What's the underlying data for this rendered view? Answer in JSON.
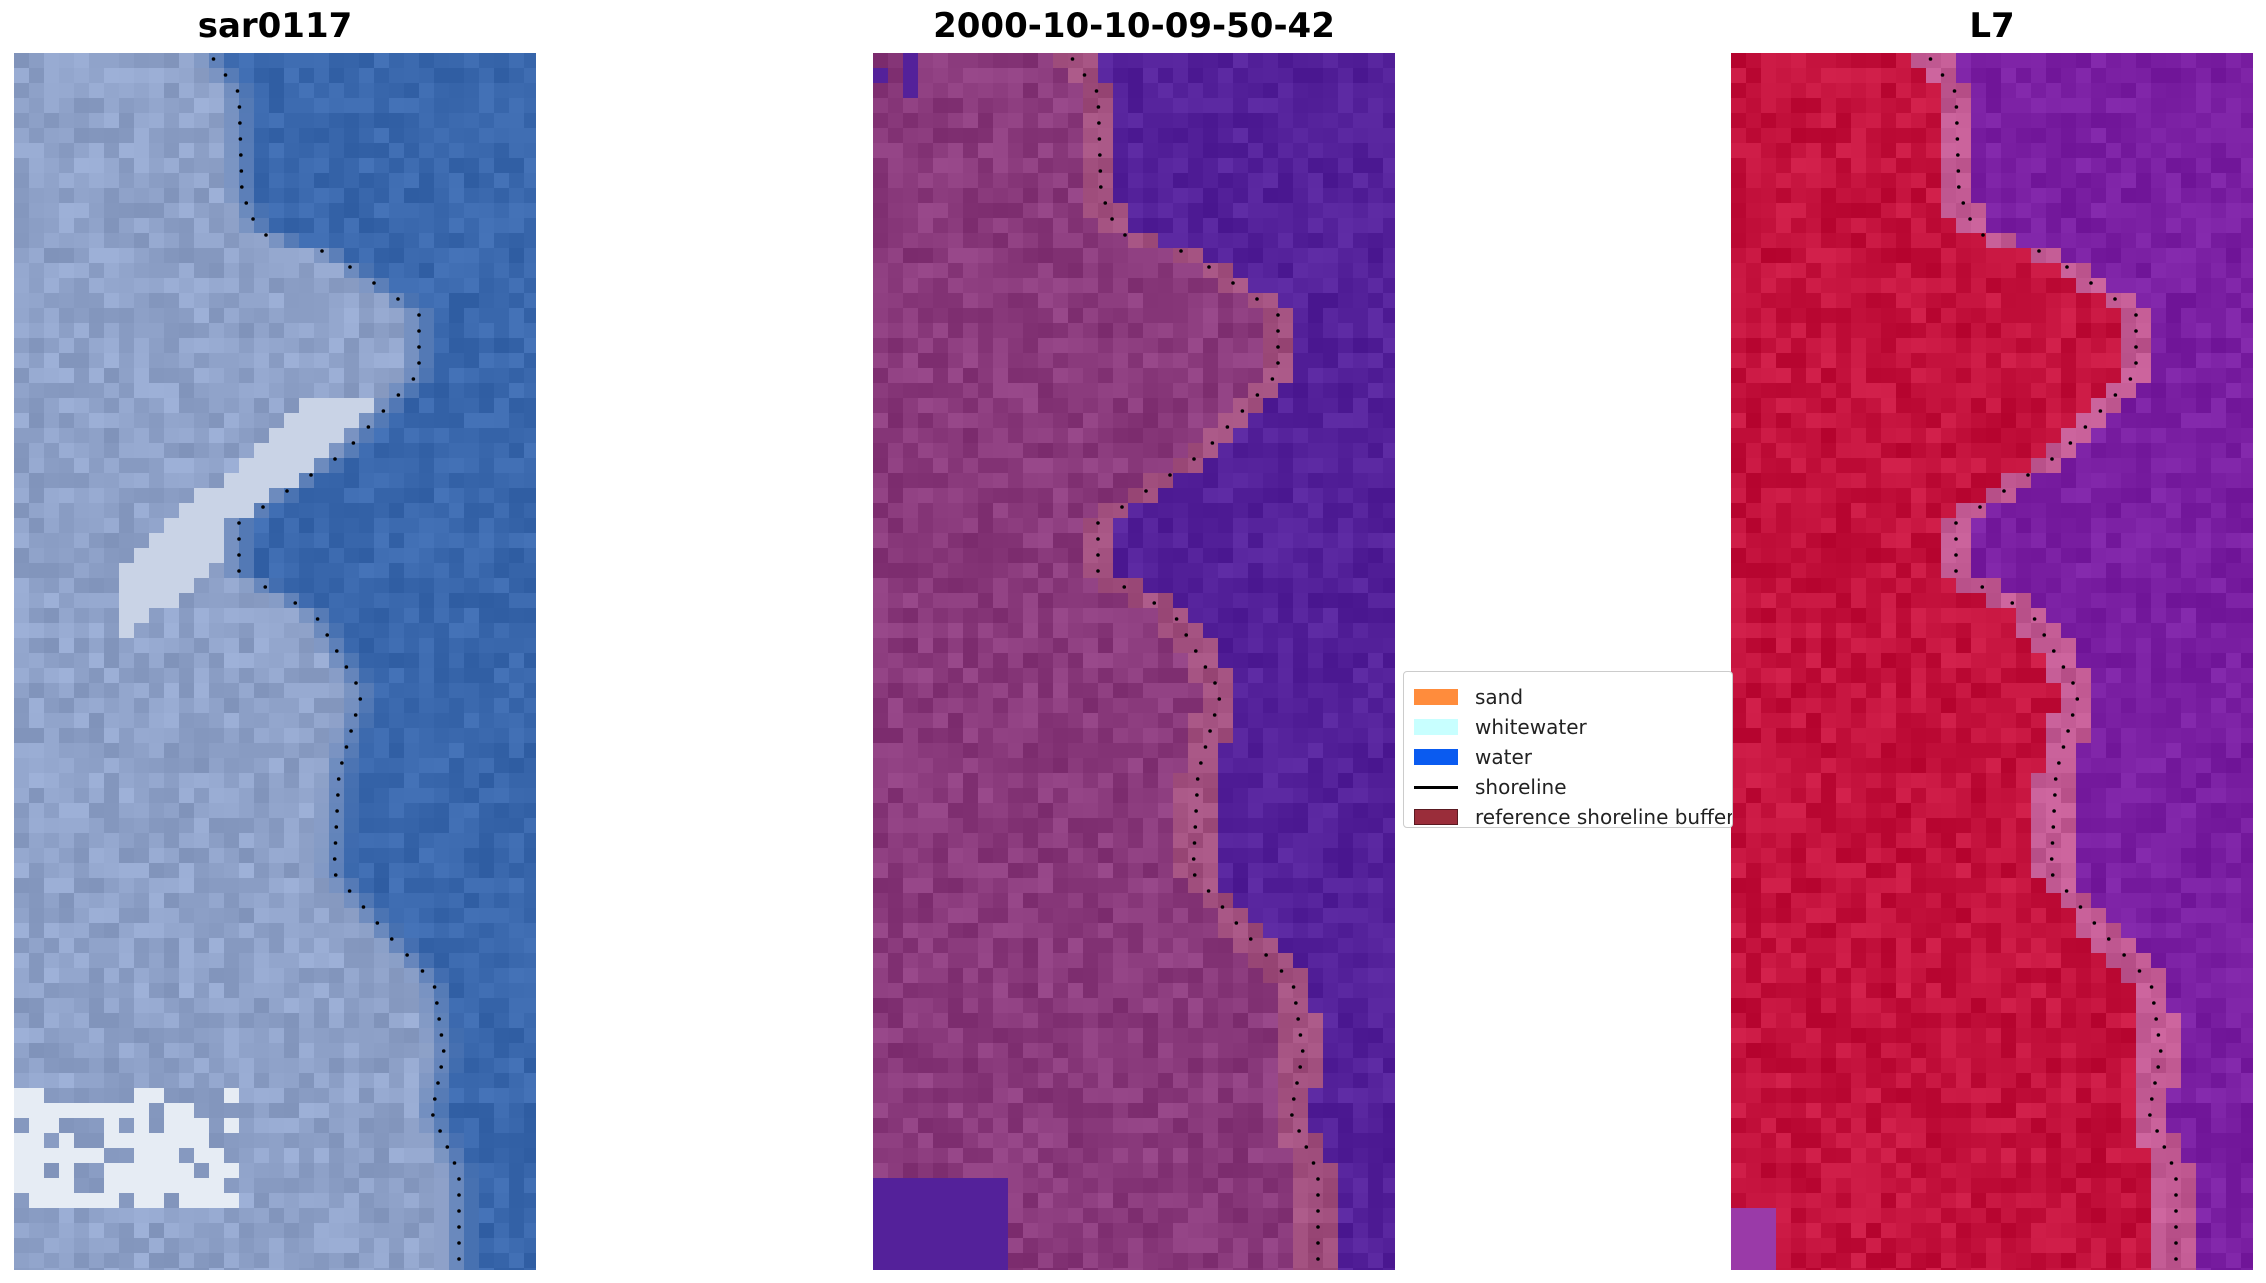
{
  "panels": [
    {
      "title": "sar0117"
    },
    {
      "title": "2000-10-10-09-50-42"
    },
    {
      "title": "L7"
    }
  ],
  "legend": {
    "items": [
      {
        "label": "sand",
        "kind": "patch",
        "color": "#ff8c3c"
      },
      {
        "label": "whitewater",
        "kind": "patch",
        "color": "#c8ffff"
      },
      {
        "label": "water",
        "kind": "patch",
        "color": "#0a5bf0"
      },
      {
        "label": "shoreline",
        "kind": "line",
        "color": "#000000"
      },
      {
        "label": "reference shoreline buffer",
        "kind": "patch",
        "color": "#9a2d3a"
      }
    ]
  },
  "colors": {
    "sar_water": "#3a68ad",
    "sar_land": "#8fa2c9",
    "class_water": "#54219a",
    "class_land": "#8a3a7c",
    "l7_water": "#7a1fa2",
    "l7_land": "#c4123d"
  }
}
